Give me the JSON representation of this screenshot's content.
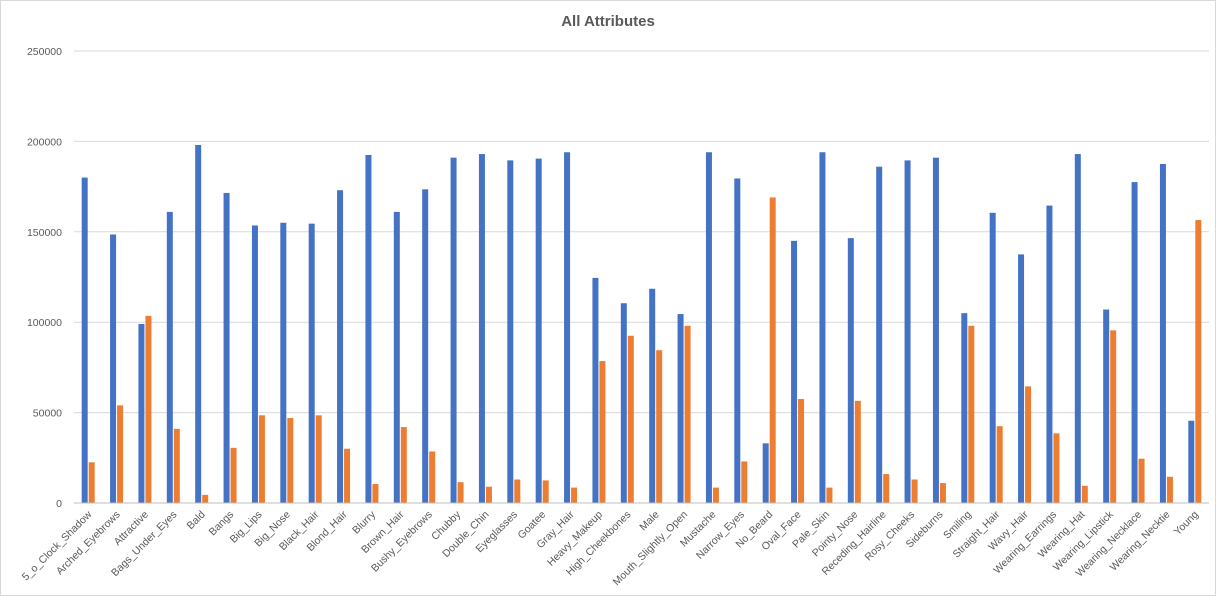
{
  "chart_data": {
    "type": "bar",
    "title": "All Attributes",
    "xlabel": "",
    "ylabel": "",
    "ylim": [
      0,
      250000
    ],
    "yticks": [
      0,
      50000,
      100000,
      150000,
      200000,
      250000
    ],
    "grid": true,
    "legend": "none",
    "categories": [
      "5_o_Clock_Shadow",
      "Arched_Eyebrows",
      "Attractive",
      "Bags_Under_Eyes",
      "Bald",
      "Bangs",
      "Big_Lips",
      "Big_Nose",
      "Black_Hair",
      "Blond_Hair",
      "Blurry",
      "Brown_Hair",
      "Bushy_Eyebrows",
      "Chubby",
      "Double_Chin",
      "Eyeglasses",
      "Goatee",
      "Gray_Hair",
      "Heavy_Makeup",
      "High_Cheekbones",
      "Male",
      "Mouth_Slightly_Open",
      "Mustache",
      "Narrow_Eyes",
      "No_Beard",
      "Oval_Face",
      "Pale_Skin",
      "Pointy_Nose",
      "Receding_Hairline",
      "Rosy_Cheeks",
      "Sideburns",
      "Smiling",
      "Straight_Hair",
      "Wavy_Hair",
      "Wearing_Earrings",
      "Wearing_Hat",
      "Wearing_Lipstick",
      "Wearing_Necklace",
      "Wearing_Necktie",
      "Young"
    ],
    "series": [
      {
        "color": "#4472c4",
        "values": [
          180000,
          148500,
          99000,
          161000,
          198000,
          171500,
          153500,
          155000,
          154500,
          173000,
          192500,
          161000,
          173500,
          191000,
          193000,
          189500,
          190500,
          194000,
          124500,
          110500,
          118500,
          104500,
          194000,
          179500,
          33000,
          145000,
          194000,
          146500,
          186000,
          189500,
          191000,
          105000,
          160500,
          137500,
          164500,
          193000,
          107000,
          177500,
          187500,
          45500
        ]
      },
      {
        "color": "#ed7d31",
        "values": [
          22500,
          54000,
          103500,
          41000,
          4500,
          30500,
          48500,
          47000,
          48500,
          30000,
          10500,
          42000,
          28500,
          11500,
          9000,
          13000,
          12500,
          8500,
          78500,
          92500,
          84500,
          98000,
          8500,
          23000,
          169000,
          57500,
          8500,
          56500,
          16000,
          13000,
          11000,
          98000,
          42500,
          64500,
          38500,
          9500,
          95500,
          24500,
          14500,
          156500
        ]
      }
    ]
  }
}
